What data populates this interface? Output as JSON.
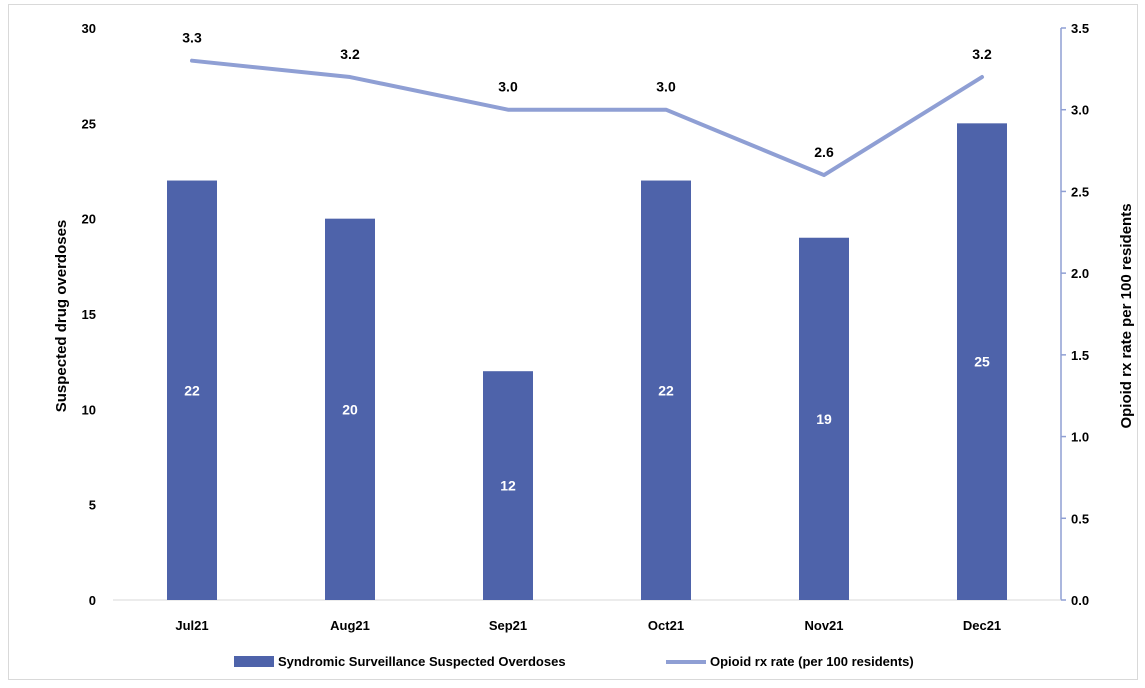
{
  "chart_data": {
    "type": "bar",
    "categories": [
      "Jul21",
      "Aug21",
      "Sep21",
      "Oct21",
      "Nov21",
      "Dec21"
    ],
    "series": [
      {
        "name": "Syndromic Surveillance Suspected Overdoses",
        "type": "bar",
        "axis": "left",
        "values": [
          22,
          20,
          12,
          22,
          19,
          25
        ],
        "data_labels": [
          "22",
          "20",
          "12",
          "22",
          "19",
          "25"
        ],
        "color": "#4e63aa"
      },
      {
        "name": "Opioid rx rate (per 100 residents)",
        "type": "line",
        "axis": "right",
        "values": [
          3.3,
          3.2,
          3.0,
          3.0,
          2.6,
          3.2
        ],
        "data_labels": [
          "3.3",
          "3.2",
          "3.0",
          "3.0",
          "2.6",
          "3.2"
        ],
        "color": "#8f9fd4"
      }
    ],
    "ylabel": "Suspected drug overdoses",
    "y2label": "Opioid rx rate per 100 residents",
    "ylim": [
      0,
      30
    ],
    "y2lim": [
      0,
      3.5
    ],
    "yticks": [
      "0",
      "5",
      "10",
      "15",
      "20",
      "25",
      "30"
    ],
    "y2ticks": [
      "0.0",
      "0.5",
      "1.0",
      "1.5",
      "2.0",
      "2.5",
      "3.0",
      "3.5"
    ],
    "grid": false,
    "legend_position": "bottom"
  }
}
